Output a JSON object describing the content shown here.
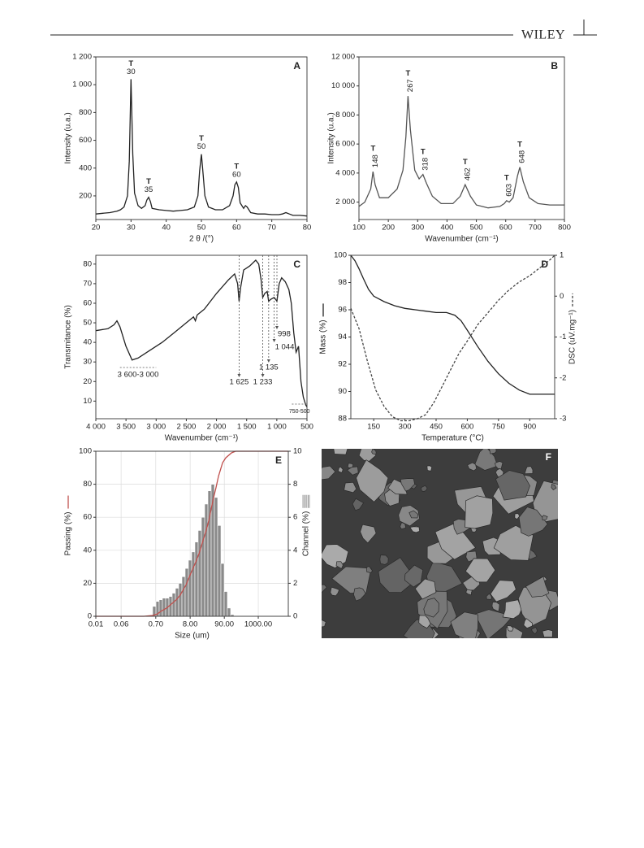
{
  "header": {
    "publisher": "WILEY"
  },
  "chart_data": [
    {
      "type": "line",
      "label": "A",
      "xlabel": "2 θ /(°)",
      "ylabel": "Intensity (u.a.)",
      "xlim": [
        20,
        80
      ],
      "xticks": [
        20,
        30,
        40,
        50,
        60,
        70,
        80
      ],
      "ylim": [
        30,
        1200
      ],
      "yticks": [
        200,
        400,
        600,
        800,
        {
          "value": 1000,
          "label": "1 000"
        },
        {
          "value": 1200,
          "label": "1 200"
        }
      ],
      "series": [
        {
          "color": "#222222",
          "x": [
            20,
            22,
            24,
            26,
            27,
            28,
            29,
            29.5,
            30,
            30.5,
            31,
            32,
            33,
            34,
            34.5,
            35,
            35.5,
            36,
            38,
            40,
            42,
            44,
            46,
            48,
            49,
            49.5,
            50,
            50.5,
            51,
            52,
            54,
            56,
            58,
            59,
            59.5,
            60,
            60.5,
            61,
            62,
            62.5,
            63,
            64,
            66,
            68,
            70,
            72,
            73,
            74,
            75,
            76,
            78,
            80
          ],
          "values": [
            70,
            75,
            80,
            90,
            100,
            120,
            200,
            450,
            1040,
            500,
            220,
            130,
            110,
            130,
            170,
            190,
            160,
            110,
            100,
            95,
            90,
            95,
            100,
            120,
            200,
            380,
            500,
            350,
            200,
            120,
            100,
            100,
            130,
            200,
            280,
            300,
            260,
            150,
            110,
            130,
            120,
            80,
            70,
            70,
            65,
            65,
            70,
            80,
            70,
            60,
            60,
            55
          ]
        }
      ],
      "peaks": [
        {
          "x": 30,
          "label": "T"
        },
        {
          "x": 35,
          "label": "T"
        },
        {
          "x": 50,
          "label": "T"
        },
        {
          "x": 60,
          "label": "T"
        }
      ]
    },
    {
      "type": "line",
      "label": "B",
      "xlabel": "Wavenumber (cm⁻¹)",
      "ylabel": "Intensity (u.a.)",
      "xlim": [
        100,
        800
      ],
      "xticks": [
        100,
        200,
        300,
        400,
        500,
        600,
        700,
        800
      ],
      "ylim": [
        800,
        12000
      ],
      "yticks": [
        {
          "value": 2000,
          "label": "2 000"
        },
        {
          "value": 4000,
          "label": "4 000"
        },
        {
          "value": 6000,
          "label": "6 000"
        },
        {
          "value": 8000,
          "label": "8 000"
        },
        {
          "value": 10000,
          "label": "10 000"
        },
        {
          "value": 12000,
          "label": "12 000"
        }
      ],
      "series": [
        {
          "color": "#555555",
          "x": [
            100,
            120,
            140,
            148,
            155,
            170,
            200,
            230,
            250,
            260,
            267,
            275,
            290,
            305,
            318,
            330,
            350,
            380,
            420,
            445,
            462,
            480,
            500,
            540,
            580,
            595,
            603,
            612,
            625,
            640,
            648,
            660,
            680,
            710,
            750,
            800
          ],
          "values": [
            1700,
            2000,
            2900,
            4100,
            3200,
            2300,
            2300,
            2900,
            4200,
            6500,
            9300,
            7000,
            4200,
            3600,
            3900,
            3300,
            2400,
            1900,
            1900,
            2400,
            3200,
            2400,
            1800,
            1600,
            1700,
            1900,
            2100,
            2000,
            2300,
            3800,
            4400,
            3400,
            2300,
            1900,
            1800,
            1800
          ]
        }
      ],
      "peaks": [
        {
          "x": 148,
          "label": "T"
        },
        {
          "x": 267,
          "label": "T"
        },
        {
          "x": 318,
          "label": "T"
        },
        {
          "x": 462,
          "label": "T"
        },
        {
          "x": 603,
          "label": "T"
        },
        {
          "x": 648,
          "label": "T"
        }
      ]
    },
    {
      "type": "line",
      "label": "C",
      "xlabel": "Wavenumber (cm⁻¹)",
      "ylabel": "Transmitance (%)",
      "xlim": [
        4000,
        500
      ],
      "xticks": [
        {
          "value": 4000,
          "label": "4 000"
        },
        {
          "value": 3500,
          "label": "3 500"
        },
        {
          "value": 3000,
          "label": "3 000"
        },
        {
          "value": 2500,
          "label": "2 500"
        },
        {
          "value": 2000,
          "label": "2 000"
        },
        {
          "value": 1500,
          "label": "1 500"
        },
        {
          "value": 1000,
          "label": "1 000"
        },
        500
      ],
      "ylim": [
        1,
        84.5
      ],
      "yticks": [
        10,
        20,
        30,
        40,
        50,
        60,
        70,
        80
      ],
      "series": [
        {
          "color": "#222222",
          "x": [
            4000,
            3800,
            3700,
            3650,
            3600,
            3500,
            3400,
            3300,
            3100,
            2900,
            2700,
            2500,
            2380,
            2350,
            2320,
            2200,
            2000,
            1800,
            1700,
            1650,
            1625,
            1600,
            1550,
            1450,
            1350,
            1300,
            1260,
            1233,
            1200,
            1160,
            1135,
            1100,
            1044,
            1020,
            998,
            960,
            920,
            860,
            800,
            760,
            720,
            680,
            640,
            600,
            560,
            520,
            500
          ],
          "values": [
            46,
            47,
            49,
            51,
            48,
            38,
            31,
            32,
            36,
            40,
            45,
            50,
            53,
            51,
            54,
            57,
            65,
            72,
            75,
            70,
            61,
            68,
            77,
            79,
            82,
            80,
            72,
            63,
            65,
            66,
            61,
            62,
            63,
            62,
            61,
            70,
            73,
            71,
            67,
            60,
            45,
            35,
            38,
            20,
            12,
            8,
            7
          ]
        }
      ],
      "markers": [
        {
          "value": 1625,
          "label": "1 625"
        },
        {
          "value": 1233,
          "label": "1 233"
        },
        {
          "value": 1135,
          "label": "1 135"
        },
        {
          "value": 1044,
          "label": "1 044"
        },
        {
          "value": 998,
          "label": "998"
        }
      ],
      "ranges": [
        {
          "from": 3600,
          "to": 3000,
          "label": "3 600-3 000"
        },
        {
          "from": 750,
          "to": 500,
          "label": "750-500"
        }
      ]
    },
    {
      "type": "line",
      "label": "D",
      "xlabel": "Temperature (°C)",
      "ylabel": "Mass (%)",
      "y2label": "DSC (uV.mg⁻¹)",
      "xlim": [
        40,
        1020
      ],
      "xticks": [
        150,
        300,
        450,
        600,
        750,
        900
      ],
      "ylim": [
        88,
        100
      ],
      "yticks": [
        88,
        90,
        92,
        94,
        96,
        98,
        100
      ],
      "y2lim": [
        -3,
        1
      ],
      "y2ticks": [
        -3,
        -2,
        -1,
        0,
        1
      ],
      "series": [
        {
          "color": "#222222",
          "x": [
            40,
            60,
            80,
            100,
            125,
            150,
            200,
            250,
            300,
            350,
            400,
            450,
            500,
            540,
            570,
            600,
            650,
            700,
            750,
            800,
            850,
            900,
            950,
            1000,
            1020
          ],
          "values": [
            100,
            99.6,
            99,
            98.3,
            97.5,
            97,
            96.6,
            96.3,
            96.1,
            96,
            95.9,
            95.8,
            95.8,
            95.6,
            95.2,
            94.5,
            93.3,
            92.2,
            91.3,
            90.6,
            90.1,
            89.8,
            89.8,
            89.8,
            89.8
          ]
        },
        {
          "color": "#444444",
          "axis": "y2",
          "dashed": true,
          "x": [
            40,
            80,
            120,
            160,
            200,
            240,
            280,
            320,
            360,
            400,
            440,
            480,
            520,
            560,
            600,
            650,
            700,
            750,
            800,
            850,
            900,
            950,
            1000,
            1020
          ],
          "values": [
            -0.3,
            -0.8,
            -1.6,
            -2.3,
            -2.7,
            -2.95,
            -3.05,
            -3.05,
            -3,
            -2.9,
            -2.6,
            -2.2,
            -1.8,
            -1.4,
            -1.1,
            -0.7,
            -0.4,
            -0.1,
            0.15,
            0.35,
            0.5,
            0.7,
            0.9,
            1
          ]
        }
      ]
    },
    {
      "type": "combo",
      "label": "E",
      "xlabel": "Size (um)",
      "ylabel": "Passing (%)",
      "y2label": "Channel (%)",
      "xscale": "log",
      "grid": true,
      "xlim": [
        0.01,
        8400
      ],
      "xticks": [
        0.01,
        0.06,
        {
          "value": 0.7,
          "label": "0.70"
        },
        {
          "value": 8,
          "label": "8.00"
        },
        {
          "value": 90,
          "label": "90.00"
        },
        {
          "value": 1000,
          "label": "1000.00"
        }
      ],
      "ylim": [
        0,
        100
      ],
      "yticks": [
        0,
        20,
        40,
        60,
        80,
        100
      ],
      "y2lim": [
        0,
        10
      ],
      "y2ticks": [
        0,
        2,
        4,
        6,
        8,
        10
      ],
      "series": [
        {
          "type": "histogram",
          "axis": "y2",
          "color": "#8a8a8a",
          "bins": [
            0.56,
            0.71,
            0.89,
            1.12,
            1.41,
            1.78,
            2.24,
            2.82,
            3.55,
            4.47,
            5.62,
            7.08,
            8.91,
            11.2,
            14.1,
            17.8,
            22.4,
            28.2,
            35.5,
            44.7,
            56.2,
            70.8,
            89.1,
            112,
            141,
            178
          ],
          "values": [
            0.6,
            0.9,
            1,
            1.1,
            1.1,
            1.2,
            1.4,
            1.7,
            2,
            2.4,
            2.9,
            3.4,
            3.9,
            4.5,
            5.2,
            6,
            6.8,
            7.6,
            8,
            7.2,
            5.5,
            3.2,
            1.5,
            0.5,
            0.1
          ]
        },
        {
          "type": "line",
          "color": "#c0504d",
          "x": [
            0.01,
            0.1,
            0.3,
            0.56,
            0.8,
            1,
            1.5,
            2,
            3,
            4,
            6,
            8,
            12,
            15,
            20,
            25,
            30,
            40,
            50,
            60,
            80,
            100,
            150,
            200,
            1000,
            8400
          ],
          "values": [
            0,
            0,
            0,
            0.5,
            1.5,
            3,
            5,
            7,
            10,
            13,
            19,
            25,
            33,
            38,
            46,
            52,
            58,
            70,
            78,
            85,
            93,
            96,
            99,
            100,
            100,
            100
          ]
        }
      ]
    }
  ],
  "image_panel": {
    "label": "F"
  }
}
